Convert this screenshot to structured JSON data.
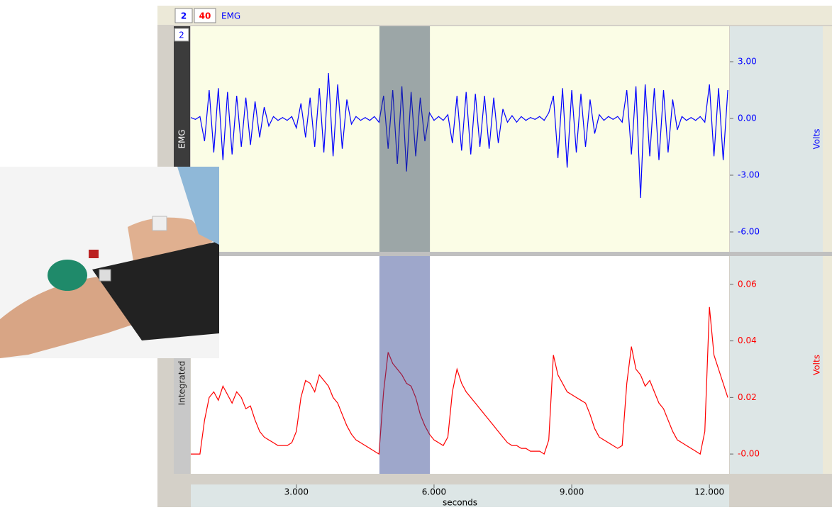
{
  "toolbar": {
    "items": [
      "2",
      "40",
      "EMG"
    ]
  },
  "channel_box": "2",
  "chart_data": [
    {
      "type": "line",
      "x": [
        0.7,
        0.8,
        0.9,
        1.0,
        1.1,
        1.2,
        1.3,
        1.4,
        1.5,
        1.6,
        1.7,
        1.8,
        1.9,
        2.0,
        2.1,
        2.2,
        2.3,
        2.4,
        2.5,
        2.6,
        2.7,
        2.8,
        2.9,
        3.0,
        3.1,
        3.2,
        3.3,
        3.4,
        3.5,
        3.6,
        3.7,
        3.8,
        3.9,
        4.0,
        4.1,
        4.2,
        4.3,
        4.4,
        4.5,
        4.6,
        4.7,
        4.8,
        4.9,
        5.0,
        5.1,
        5.2,
        5.3,
        5.4,
        5.5,
        5.6,
        5.7,
        5.8,
        5.9,
        6.0,
        6.1,
        6.2,
        6.3,
        6.4,
        6.5,
        6.6,
        6.7,
        6.8,
        6.9,
        7.0,
        7.1,
        7.2,
        7.3,
        7.4,
        7.5,
        7.6,
        7.7,
        7.8,
        7.9,
        8.0,
        8.1,
        8.2,
        8.3,
        8.4,
        8.5,
        8.6,
        8.7,
        8.8,
        8.9,
        9.0,
        9.1,
        9.2,
        9.3,
        9.4,
        9.5,
        9.6,
        9.7,
        9.8,
        9.9,
        10.0,
        10.1,
        10.2,
        10.3,
        10.4,
        10.5,
        10.6,
        10.7,
        10.8,
        10.9,
        11.0,
        11.1,
        11.2,
        11.3,
        11.4,
        11.5,
        11.6,
        11.7,
        11.8,
        11.9,
        12.0,
        12.1,
        12.2,
        12.3,
        12.4
      ],
      "series": [
        {
          "name": "EMG",
          "color": "#0000ff",
          "values": [
            0.05,
            -0.05,
            0.1,
            -1.2,
            1.5,
            -1.8,
            1.6,
            -2.2,
            1.4,
            -1.9,
            1.2,
            -1.5,
            1.1,
            -1.4,
            0.9,
            -1.0,
            0.6,
            -0.4,
            0.1,
            -0.1,
            0.05,
            -0.1,
            0.1,
            -0.5,
            0.8,
            -1.0,
            1.1,
            -1.5,
            1.6,
            -1.8,
            2.4,
            -2.0,
            1.8,
            -1.6,
            1.0,
            -0.3,
            0.1,
            -0.1,
            0.05,
            -0.1,
            0.1,
            -0.2,
            1.2,
            -1.6,
            1.5,
            -2.4,
            1.7,
            -2.8,
            1.4,
            -2.0,
            1.1,
            -1.2,
            0.3,
            -0.1,
            0.1,
            -0.1,
            0.2,
            -1.3,
            1.2,
            -1.7,
            1.4,
            -1.9,
            1.3,
            -1.5,
            1.2,
            -1.6,
            1.1,
            -1.3,
            0.5,
            -0.2,
            0.15,
            -0.2,
            0.1,
            -0.1,
            0.05,
            -0.05,
            0.1,
            -0.1,
            0.3,
            1.2,
            -2.1,
            1.6,
            -2.6,
            1.5,
            -1.8,
            1.3,
            -1.5,
            1.0,
            -0.8,
            0.2,
            -0.1,
            0.1,
            -0.05,
            0.1,
            -0.2,
            1.5,
            -1.9,
            1.7,
            -4.2,
            1.8,
            -2.0,
            1.6,
            -2.2,
            1.5,
            -1.8,
            1.0,
            -0.6,
            0.1,
            -0.1,
            0.05,
            -0.1,
            0.1,
            -0.2,
            1.8,
            -2.0,
            1.6,
            -2.2,
            1.5
          ]
        }
      ],
      "xlim": [
        0.7,
        12.43
      ],
      "ylim": [
        -7.05,
        4.875
      ],
      "yticks": [
        {
          "value": 3,
          "label": "3.00"
        },
        {
          "value": 0,
          "label": "0.00"
        },
        {
          "value": -3,
          "label": "-3.00"
        },
        {
          "value": -6,
          "label": "-6.00"
        }
      ],
      "y_label": "Volts",
      "selection": [
        4.81,
        5.91
      ]
    },
    {
      "type": "line",
      "x": [
        0.7,
        0.8,
        0.9,
        1.0,
        1.1,
        1.2,
        1.3,
        1.4,
        1.5,
        1.6,
        1.7,
        1.8,
        1.9,
        2.0,
        2.1,
        2.2,
        2.3,
        2.4,
        2.5,
        2.6,
        2.7,
        2.8,
        2.9,
        3.0,
        3.1,
        3.2,
        3.3,
        3.4,
        3.5,
        3.6,
        3.7,
        3.8,
        3.9,
        4.0,
        4.1,
        4.2,
        4.3,
        4.4,
        4.5,
        4.6,
        4.7,
        4.8,
        4.9,
        5.0,
        5.1,
        5.2,
        5.3,
        5.4,
        5.5,
        5.6,
        5.7,
        5.8,
        5.9,
        6.0,
        6.1,
        6.2,
        6.3,
        6.4,
        6.5,
        6.6,
        6.7,
        6.8,
        6.9,
        7.0,
        7.1,
        7.2,
        7.3,
        7.4,
        7.5,
        7.6,
        7.7,
        7.8,
        7.9,
        8.0,
        8.1,
        8.2,
        8.3,
        8.4,
        8.5,
        8.6,
        8.7,
        8.8,
        8.9,
        9.0,
        9.1,
        9.2,
        9.3,
        9.4,
        9.5,
        9.6,
        9.7,
        9.8,
        9.9,
        10.0,
        10.1,
        10.2,
        10.3,
        10.4,
        10.5,
        10.6,
        10.7,
        10.8,
        10.9,
        11.0,
        11.1,
        11.2,
        11.3,
        11.4,
        11.5,
        11.6,
        11.7,
        11.8,
        11.9,
        12.0,
        12.1,
        12.2,
        12.3,
        12.4
      ],
      "series": [
        {
          "name": "Integrated",
          "color": "#ff0000",
          "values": [
            0.0,
            0.0,
            0.0,
            0.012,
            0.02,
            0.022,
            0.019,
            0.024,
            0.021,
            0.018,
            0.022,
            0.02,
            0.016,
            0.017,
            0.012,
            0.008,
            0.006,
            0.005,
            0.004,
            0.003,
            0.003,
            0.003,
            0.004,
            0.008,
            0.02,
            0.026,
            0.025,
            0.022,
            0.028,
            0.026,
            0.024,
            0.02,
            0.018,
            0.014,
            0.01,
            0.007,
            0.005,
            0.004,
            0.003,
            0.002,
            0.001,
            0.0,
            0.022,
            0.036,
            0.032,
            0.03,
            0.028,
            0.025,
            0.024,
            0.02,
            0.014,
            0.01,
            0.007,
            0.005,
            0.004,
            0.003,
            0.006,
            0.022,
            0.03,
            0.025,
            0.022,
            0.02,
            0.018,
            0.016,
            0.014,
            0.012,
            0.01,
            0.008,
            0.006,
            0.004,
            0.003,
            0.003,
            0.002,
            0.002,
            0.001,
            0.001,
            0.001,
            0.0,
            0.005,
            0.035,
            0.028,
            0.025,
            0.022,
            0.021,
            0.02,
            0.019,
            0.018,
            0.014,
            0.009,
            0.006,
            0.005,
            0.004,
            0.003,
            0.002,
            0.003,
            0.025,
            0.038,
            0.03,
            0.028,
            0.024,
            0.026,
            0.022,
            0.018,
            0.016,
            0.012,
            0.008,
            0.005,
            0.004,
            0.003,
            0.002,
            0.001,
            0.0,
            0.008,
            0.052,
            0.035,
            0.03,
            0.025,
            0.02
          ]
        }
      ],
      "xlim": [
        0.7,
        12.43
      ],
      "ylim": [
        -0.007,
        0.07
      ],
      "yticks": [
        {
          "value": 0.06,
          "label": "0.06"
        },
        {
          "value": 0.04,
          "label": "0.04"
        },
        {
          "value": 0.02,
          "label": "0.02"
        },
        {
          "value": 0,
          "label": "-0.00"
        }
      ],
      "y_label": "Volts",
      "xticks": [
        {
          "value": 3,
          "label": "3.000"
        },
        {
          "value": 6,
          "label": "6.000"
        },
        {
          "value": 9,
          "label": "9.000"
        },
        {
          "value": 12,
          "label": "12.000"
        }
      ],
      "x_label": "seconds",
      "selection": [
        4.81,
        5.91
      ]
    }
  ]
}
